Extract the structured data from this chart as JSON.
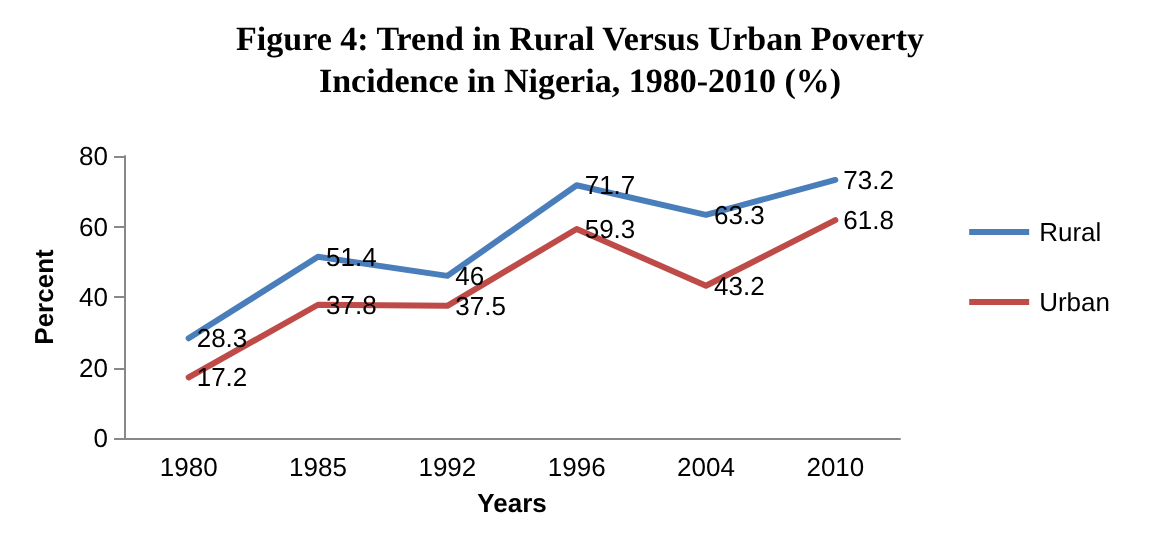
{
  "chart_data": {
    "type": "line",
    "title": "Figure 4: Trend in Rural Versus Urban Poverty\nIncidence in Nigeria, 1980-2010 (%)",
    "xlabel": "Years",
    "ylabel": "Percent",
    "categories": [
      "1980",
      "1985",
      "1992",
      "1996",
      "2004",
      "2010"
    ],
    "series": [
      {
        "name": "Rural",
        "color": "#4a7ebb",
        "values": [
          28.3,
          51.4,
          46,
          71.7,
          63.3,
          73.2
        ]
      },
      {
        "name": "Urban",
        "color": "#be4b48",
        "values": [
          17.2,
          37.8,
          37.5,
          59.3,
          43.2,
          61.8
        ]
      }
    ],
    "ylim": [
      0,
      80
    ],
    "yticks": [
      0,
      20,
      40,
      60,
      80
    ],
    "grid": false,
    "legend": "right",
    "data_labels": true,
    "marker": "none",
    "line_style": "solid"
  }
}
